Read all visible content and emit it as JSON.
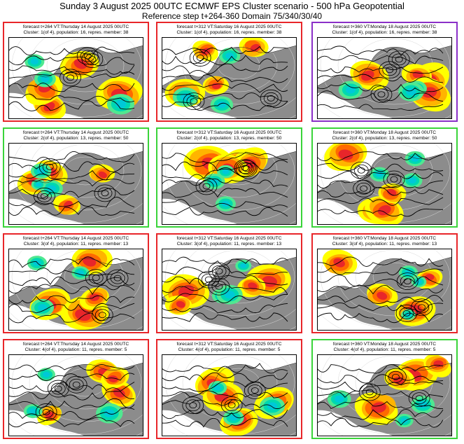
{
  "header": {
    "title": "Sunday 3 August 2025 00UTC ECMWF EPS Cluster scenario - 500 hPa Geopotential",
    "subtitle": "Reference step t+264-360 Domain 75/340/30/40"
  },
  "colors": {
    "red_border": "#e8262a",
    "green_border": "#3ad43a",
    "purple_border": "#8a2fc8",
    "land": "#8c8c8c",
    "sea": "#ffffff",
    "pos_anom": [
      "#ffff00",
      "#ffb400",
      "#ff6a00",
      "#e8262a",
      "#b0003a"
    ],
    "neg_anom": [
      "#50e890",
      "#00d8b0",
      "#00c8d8"
    ]
  },
  "panels": [
    {
      "line1": "forecast t+264 VT:Thursday 14 August 2025 00UTC",
      "line2": "Cluster: 1(of 4), population: 16, repres. member: 38",
      "border": "red"
    },
    {
      "line1": "forecast t+312 VT:Saturday 16 August 2025 00UTC",
      "line2": "Cluster: 1(of 4), population: 16, repres. member: 38",
      "border": "red"
    },
    {
      "line1": "forecast t+360 VT:Monday 18 August 2025 00UTC",
      "line2": "Cluster: 1(of 4), population: 16, repres. member: 38",
      "border": "purple"
    },
    {
      "line1": "forecast t+264 VT:Thursday 14 August 2025 00UTC",
      "line2": "Cluster: 2(of 4), population: 13, repres. member: 50",
      "border": "green"
    },
    {
      "line1": "forecast t+312 VT:Saturday 16 August 2025 00UTC",
      "line2": "Cluster: 2(of 4), population: 13, repres. member: 50",
      "border": "green"
    },
    {
      "line1": "forecast t+360 VT:Monday 18 August 2025 00UTC",
      "line2": "Cluster: 2(of 4), population: 13, repres. member: 50",
      "border": "green"
    },
    {
      "line1": "forecast t+264 VT:Thursday 14 August 2025 00UTC",
      "line2": "Cluster: 3(of 4), population: 11, repres. member: 13",
      "border": "red"
    },
    {
      "line1": "forecast t+312 VT:Saturday 16 August 2025 00UTC",
      "line2": "Cluster: 3(of 4), population: 11, repres. member: 13",
      "border": "red"
    },
    {
      "line1": "forecast t+360 VT:Monday 18 August 2025 00UTC",
      "line2": "Cluster: 3(of 4), population: 11, repres. member: 13",
      "border": "red"
    },
    {
      "line1": "forecast t+264 VT:Thursday 14 August 2025 00UTC",
      "line2": "Cluster: 4(of 4), population: 11, repres. member: 5",
      "border": "red"
    },
    {
      "line1": "forecast t+312 VT:Saturday 16 August 2025 00UTC",
      "line2": "Cluster: 4(of 4), population: 11, repres. member: 5",
      "border": "red"
    },
    {
      "line1": "forecast t+360 VT:Monday 18 August 2025 00UTC",
      "line2": "Cluster: 4(of 4), population: 11, repres. member: 5",
      "border": "green"
    }
  ]
}
